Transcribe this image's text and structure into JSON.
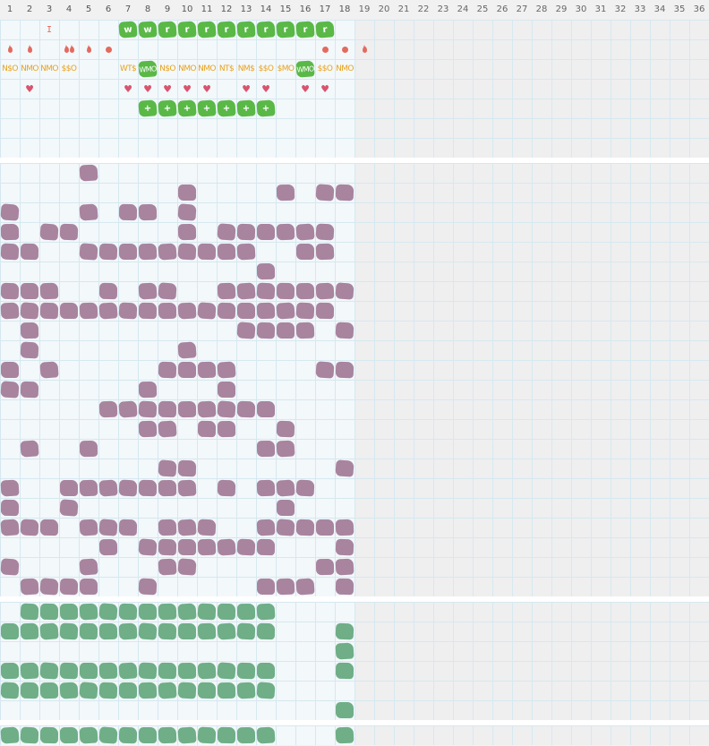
{
  "columns": [
    "1",
    "2",
    "3",
    "4",
    "5",
    "6",
    "7",
    "8",
    "9",
    "10",
    "11",
    "12",
    "13",
    "14",
    "15",
    "16",
    "17",
    "18",
    "19",
    "20",
    "21",
    "22",
    "23",
    "24",
    "25",
    "26",
    "27",
    "28",
    "29",
    "30",
    "31",
    "32",
    "33",
    "34",
    "35",
    "36"
  ],
  "active_columns": 18,
  "colors": {
    "active_bg": "#f3f8fb",
    "inactive_bg": "#efeff0",
    "grid_line": "#d6e8f0",
    "header_text": "#555555",
    "green": "#5ab847",
    "purple": "#a8849f",
    "teal": "#6fae87",
    "red": "#e46a5e",
    "heart": "#d9546e",
    "label": "#e8a21c"
  },
  "top_section": {
    "rows": 7,
    "marks": [
      {
        "col": 3,
        "row": 1,
        "symbol": "I"
      }
    ],
    "green_letters": [
      {
        "col": 7,
        "row": 1,
        "letter": "w"
      },
      {
        "col": 8,
        "row": 1,
        "letter": "w"
      },
      {
        "col": 9,
        "row": 1,
        "letter": "r"
      },
      {
        "col": 10,
        "row": 1,
        "letter": "r"
      },
      {
        "col": 11,
        "row": 1,
        "letter": "r"
      },
      {
        "col": 12,
        "row": 1,
        "letter": "r"
      },
      {
        "col": 13,
        "row": 1,
        "letter": "r"
      },
      {
        "col": 14,
        "row": 1,
        "letter": "r"
      },
      {
        "col": 15,
        "row": 1,
        "letter": "r"
      },
      {
        "col": 16,
        "row": 1,
        "letter": "r"
      },
      {
        "col": 17,
        "row": 1,
        "letter": "r"
      }
    ],
    "drops": [
      {
        "col": 1,
        "row": 2,
        "count": 1
      },
      {
        "col": 2,
        "row": 2,
        "count": 1
      },
      {
        "col": 4,
        "row": 2,
        "count": 2
      },
      {
        "col": 5,
        "row": 2,
        "count": 1
      },
      {
        "col": 19,
        "row": 2,
        "count": 1
      }
    ],
    "dots": [
      {
        "col": 6,
        "row": 2
      },
      {
        "col": 17,
        "row": 2
      },
      {
        "col": 18,
        "row": 2
      }
    ],
    "labels": [
      {
        "col": 1,
        "row": 3,
        "text": "N$O"
      },
      {
        "col": 2,
        "row": 3,
        "text": "NMO"
      },
      {
        "col": 3,
        "row": 3,
        "text": "NMO"
      },
      {
        "col": 4,
        "row": 3,
        "text": "$$O"
      },
      {
        "col": 7,
        "row": 3,
        "text": "WT$"
      },
      {
        "col": 9,
        "row": 3,
        "text": "N$O"
      },
      {
        "col": 10,
        "row": 3,
        "text": "NMO"
      },
      {
        "col": 11,
        "row": 3,
        "text": "NMO"
      },
      {
        "col": 12,
        "row": 3,
        "text": "NT$"
      },
      {
        "col": 13,
        "row": 3,
        "text": "NM$"
      },
      {
        "col": 14,
        "row": 3,
        "text": "$$O"
      },
      {
        "col": 15,
        "row": 3,
        "text": "$MO"
      },
      {
        "col": 17,
        "row": 3,
        "text": "$$O"
      },
      {
        "col": 18,
        "row": 3,
        "text": "NMO"
      }
    ],
    "green_labels": [
      {
        "col": 8,
        "row": 3,
        "text": "WMO"
      },
      {
        "col": 16,
        "row": 3,
        "text": "WMO"
      }
    ],
    "hearts": [
      {
        "col": 7,
        "row": 4
      },
      {
        "col": 2,
        "row": 4
      },
      {
        "col": 8,
        "row": 4
      },
      {
        "col": 9,
        "row": 4
      },
      {
        "col": 10,
        "row": 4
      },
      {
        "col": 11,
        "row": 4
      },
      {
        "col": 13,
        "row": 4
      },
      {
        "col": 14,
        "row": 4
      },
      {
        "col": 16,
        "row": 4
      },
      {
        "col": 17,
        "row": 4
      }
    ],
    "green_plus": [
      {
        "col": 8,
        "row": 5,
        "symbol": "+"
      },
      {
        "col": 9,
        "row": 5,
        "symbol": "+"
      },
      {
        "col": 10,
        "row": 5,
        "symbol": "+"
      },
      {
        "col": 11,
        "row": 5,
        "symbol": "+"
      },
      {
        "col": 12,
        "row": 5,
        "symbol": "+"
      },
      {
        "col": 13,
        "row": 5,
        "symbol": "+"
      },
      {
        "col": 14,
        "row": 5,
        "symbol": "+"
      }
    ]
  },
  "purple_section": {
    "rows": 22,
    "grid": [
      "....#.............",
      ".........#....#.##",
      "#...#.##.#........",
      "#.##.....#.######.",
      "##..#########..##.",
      ".............#....",
      "###..#.##..#######",
      "#################.",
      ".#..........####.#",
      ".#.......#........",
      "#.#.....####....##",
      "##.....#...#......",
      ".....#########....",
      ".......##.##..#...",
      ".#..#........##...",
      "........##.......#",
      "#..#######.#.###..",
      "#..#..........#...",
      "###.###.###..#####",
      ".....#.#######...#",
      "#...#...##......##",
      ".####..#.....###.#"
    ]
  },
  "teal_section": {
    "rows": 6,
    "grid": [
      ".#############....",
      "##############...#",
      ".................#",
      "##############...#",
      "##############....",
      ".................#"
    ]
  },
  "bottom_section": {
    "rows": 1,
    "grid": [
      "##############...#"
    ]
  }
}
